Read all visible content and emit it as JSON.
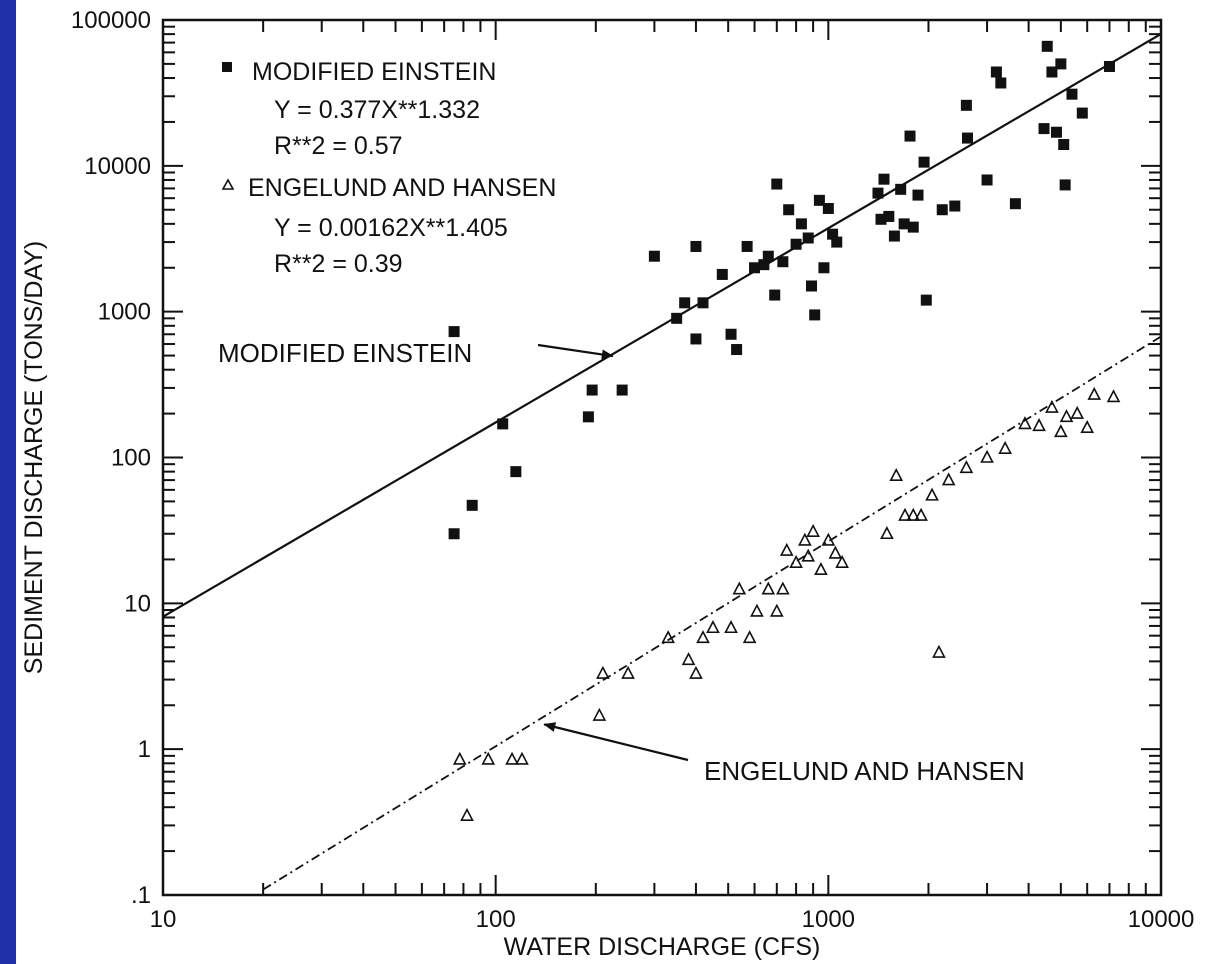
{
  "chart_data": {
    "type": "scatter",
    "title": "",
    "xlabel": "WATER DISCHARGE (CFS)",
    "ylabel": "SEDIMENT DISCHARGE (TONS/DAY)",
    "x_scale": "log",
    "y_scale": "log",
    "xlim": [
      10,
      10000
    ],
    "ylim": [
      0.1,
      100000
    ],
    "x_tick_labels": [
      "10",
      "100",
      "1000",
      "10000"
    ],
    "y_tick_labels": [
      ".1",
      "1",
      "10",
      "100",
      "1000",
      "10000",
      "100000"
    ],
    "grid": false,
    "legend_position": "top-left",
    "legend": [
      {
        "marker": "square",
        "name": "MODIFIED EINSTEIN",
        "equation": "Y = 0.377X**1.332",
        "r2": "R**2 = 0.57"
      },
      {
        "marker": "triangle",
        "name": "ENGELUND AND HANSEN",
        "equation": "Y = 0.00162X**1.405",
        "r2": "R**2 = 0.39"
      }
    ],
    "annotations": [
      {
        "text": "MODIFIED EINSTEIN",
        "target_series": "MODIFIED EINSTEIN"
      },
      {
        "text": "ENGELUND AND HANSEN",
        "target_series": "ENGELUND AND HANSEN"
      }
    ],
    "fit_lines": [
      {
        "series": "MODIFIED EINSTEIN",
        "a": 0.377,
        "b": 1.332,
        "x_range": [
          10,
          10000
        ],
        "style": "solid"
      },
      {
        "series": "ENGELUND AND HANSEN",
        "a": 0.00162,
        "b": 1.405,
        "x_range": [
          20,
          10000
        ],
        "style": "dash-dot"
      }
    ],
    "series": [
      {
        "name": "MODIFIED EINSTEIN",
        "marker": "square",
        "points": [
          [
            75,
            730
          ],
          [
            75,
            30
          ],
          [
            85,
            47
          ],
          [
            105,
            170
          ],
          [
            115,
            80
          ],
          [
            190,
            190
          ],
          [
            195,
            290
          ],
          [
            240,
            290
          ],
          [
            300,
            2400
          ],
          [
            350,
            900
          ],
          [
            370,
            1150
          ],
          [
            400,
            2800
          ],
          [
            400,
            650
          ],
          [
            420,
            1150
          ],
          [
            480,
            1800
          ],
          [
            510,
            700
          ],
          [
            530,
            550
          ],
          [
            570,
            2800
          ],
          [
            600,
            2000
          ],
          [
            640,
            2100
          ],
          [
            660,
            2400
          ],
          [
            690,
            1300
          ],
          [
            700,
            7500
          ],
          [
            730,
            2200
          ],
          [
            760,
            5000
          ],
          [
            800,
            2900
          ],
          [
            830,
            4000
          ],
          [
            870,
            3200
          ],
          [
            890,
            1500
          ],
          [
            910,
            950
          ],
          [
            940,
            5800
          ],
          [
            970,
            2000
          ],
          [
            1000,
            5100
          ],
          [
            1030,
            3400
          ],
          [
            1060,
            3000
          ],
          [
            1410,
            6500
          ],
          [
            1440,
            4300
          ],
          [
            1470,
            8100
          ],
          [
            1520,
            4500
          ],
          [
            1580,
            3300
          ],
          [
            1650,
            6900
          ],
          [
            1690,
            4000
          ],
          [
            1760,
            16000
          ],
          [
            1800,
            3800
          ],
          [
            1860,
            6300
          ],
          [
            1940,
            10600
          ],
          [
            1970,
            1200
          ],
          [
            2200,
            5000
          ],
          [
            2400,
            5300
          ],
          [
            2600,
            26000
          ],
          [
            2620,
            15500
          ],
          [
            3000,
            8000
          ],
          [
            3200,
            44000
          ],
          [
            3300,
            37000
          ],
          [
            3650,
            5500
          ],
          [
            4450,
            18000
          ],
          [
            4550,
            66000
          ],
          [
            4700,
            44000
          ],
          [
            4850,
            17000
          ],
          [
            5000,
            50000
          ],
          [
            5100,
            14000
          ],
          [
            5150,
            7400
          ],
          [
            5400,
            31000
          ],
          [
            5800,
            23000
          ],
          [
            7000,
            48000
          ]
        ]
      },
      {
        "name": "ENGELUND AND HANSEN",
        "marker": "triangle",
        "points": [
          [
            78,
            0.85
          ],
          [
            82,
            0.35
          ],
          [
            95,
            0.85
          ],
          [
            112,
            0.85
          ],
          [
            120,
            0.85
          ],
          [
            205,
            1.7
          ],
          [
            210,
            3.3
          ],
          [
            250,
            3.3
          ],
          [
            330,
            5.8
          ],
          [
            380,
            4.1
          ],
          [
            400,
            3.3
          ],
          [
            420,
            5.8
          ],
          [
            450,
            6.8
          ],
          [
            510,
            6.8
          ],
          [
            540,
            12.5
          ],
          [
            580,
            5.8
          ],
          [
            610,
            8.8
          ],
          [
            660,
            12.5
          ],
          [
            700,
            8.8
          ],
          [
            730,
            12.5
          ],
          [
            750,
            23
          ],
          [
            800,
            19
          ],
          [
            850,
            27
          ],
          [
            870,
            21
          ],
          [
            900,
            31
          ],
          [
            950,
            17
          ],
          [
            1000,
            27
          ],
          [
            1050,
            22
          ],
          [
            1100,
            19
          ],
          [
            1500,
            30
          ],
          [
            1600,
            75
          ],
          [
            1700,
            40
          ],
          [
            1800,
            40
          ],
          [
            1900,
            40
          ],
          [
            2050,
            55
          ],
          [
            2150,
            4.6
          ],
          [
            2300,
            70
          ],
          [
            2600,
            85
          ],
          [
            3000,
            100
          ],
          [
            3400,
            115
          ],
          [
            3900,
            170
          ],
          [
            4300,
            165
          ],
          [
            4700,
            220
          ],
          [
            5000,
            150
          ],
          [
            5200,
            190
          ],
          [
            5600,
            200
          ],
          [
            6000,
            160
          ],
          [
            6300,
            270
          ],
          [
            7200,
            260
          ]
        ]
      }
    ]
  }
}
